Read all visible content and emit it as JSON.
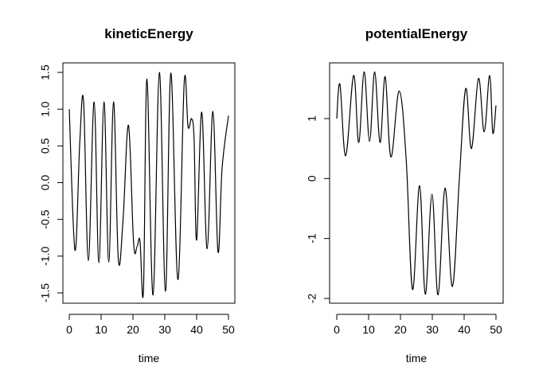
{
  "chart_data": [
    {
      "type": "line",
      "title": "kineticEnergy",
      "xlabel": "time",
      "ylabel": "",
      "xlim": [
        0,
        50
      ],
      "ylim": [
        -1.6,
        1.6
      ],
      "xticks": [
        0,
        10,
        20,
        30,
        40,
        50
      ],
      "yticks": [
        -1.5,
        -1.0,
        -0.5,
        0.0,
        0.5,
        1.0,
        1.5
      ],
      "xtick_labels": [
        "0",
        "10",
        "20",
        "30",
        "40",
        "50"
      ],
      "ytick_labels": [
        "-1.5",
        "-1.0",
        "-0.5",
        "0.0",
        "0.5",
        "1.0",
        "1.5"
      ],
      "x": [
        0,
        1.8,
        3.3,
        4.5,
        6,
        7.8,
        9.3,
        10.9,
        12.4,
        13.9,
        15.4,
        16.9,
        18.6,
        20.2,
        21.3,
        22.2,
        23.3,
        24.4,
        26.3,
        28.3,
        30.2,
        31.9,
        34.1,
        36.1,
        37.3,
        38.4,
        39.2,
        40.0,
        41.6,
        43.3,
        45.1,
        46.7,
        48.0,
        50.0
      ],
      "y": [
        1.0,
        -0.92,
        0.55,
        1.1,
        -1.06,
        1.1,
        -1.09,
        1.1,
        -1.08,
        1.1,
        -1.04,
        -0.5,
        0.78,
        -0.82,
        -0.87,
        -0.79,
        -1.47,
        1.41,
        -1.53,
        1.5,
        -1.48,
        1.49,
        -1.32,
        1.37,
        0.76,
        0.87,
        0.59,
        -0.78,
        0.96,
        -0.9,
        0.97,
        -0.94,
        0.2,
        0.91
      ]
    },
    {
      "type": "line",
      "title": "potentialEnergy",
      "xlabel": "time",
      "ylabel": "",
      "xlim": [
        0,
        50
      ],
      "ylim": [
        -2.1,
        1.95
      ],
      "xticks": [
        0,
        10,
        20,
        30,
        40,
        50
      ],
      "yticks": [
        -2,
        -1,
        0,
        1
      ],
      "xtick_labels": [
        "0",
        "10",
        "20",
        "30",
        "40",
        "50"
      ],
      "ytick_labels": [
        "-2",
        "-1",
        "0",
        "1"
      ],
      "x": [
        0,
        1.0,
        2.8,
        5.3,
        6.9,
        8.6,
        10.3,
        11.9,
        13.6,
        15.2,
        17.0,
        19.6,
        21.8,
        23.8,
        26.0,
        27.8,
        29.9,
        31.8,
        34.0,
        36.3,
        38.5,
        40.5,
        42.3,
        44.5,
        46.3,
        48.0,
        49.0,
        50.0
      ],
      "y": [
        1.0,
        1.57,
        0.38,
        1.72,
        0.6,
        1.78,
        0.62,
        1.78,
        0.6,
        1.7,
        0.36,
        1.46,
        0.32,
        -1.85,
        -0.12,
        -1.93,
        -0.26,
        -1.94,
        -0.16,
        -1.8,
        0.0,
        1.5,
        0.5,
        1.67,
        0.78,
        1.72,
        0.76,
        1.22
      ]
    }
  ]
}
